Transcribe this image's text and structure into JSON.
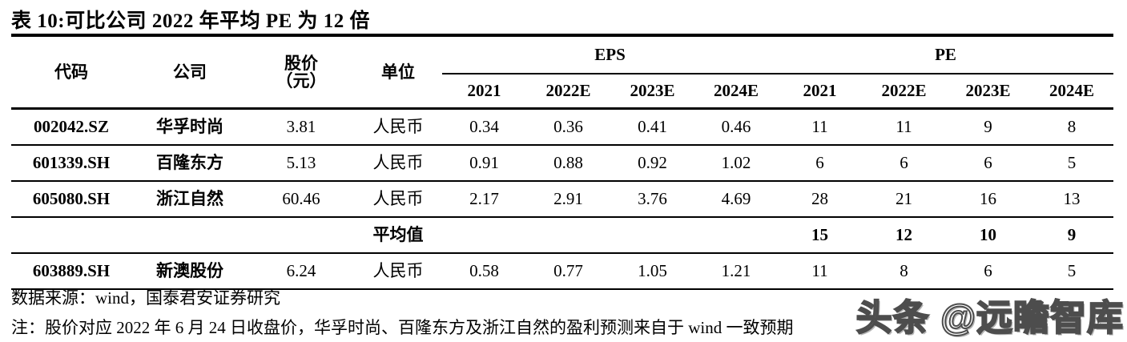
{
  "title": "表 10:可比公司 2022 年平均 PE 为 12 倍",
  "table": {
    "headers": {
      "code": "代码",
      "company": "公司",
      "price_line1": "股价",
      "price_line2": "（元）",
      "unit": "单位",
      "eps_group": "EPS",
      "pe_group": "PE",
      "years": [
        "2021",
        "2022E",
        "2023E",
        "2024E"
      ]
    },
    "rows": [
      {
        "type": "data",
        "code": "002042.SZ",
        "company": "华孚时尚",
        "price": "3.81",
        "unit": "人民币",
        "eps": [
          "0.34",
          "0.36",
          "0.41",
          "0.46"
        ],
        "pe": [
          "11",
          "11",
          "9",
          "8"
        ]
      },
      {
        "type": "data",
        "code": "601339.SH",
        "company": "百隆东方",
        "price": "5.13",
        "unit": "人民币",
        "eps": [
          "0.91",
          "0.88",
          "0.92",
          "1.02"
        ],
        "pe": [
          "6",
          "6",
          "6",
          "5"
        ]
      },
      {
        "type": "data",
        "code": "605080.SH",
        "company": "浙江自然",
        "price": "60.46",
        "unit": "人民币",
        "eps": [
          "2.17",
          "2.91",
          "3.76",
          "4.69"
        ],
        "pe": [
          "28",
          "21",
          "16",
          "13"
        ]
      },
      {
        "type": "average",
        "code": "",
        "company": "",
        "price": "",
        "unit": "平均值",
        "eps": [
          "",
          "",
          "",
          ""
        ],
        "pe": [
          "15",
          "12",
          "10",
          "9"
        ]
      },
      {
        "type": "data",
        "code": "603889.SH",
        "company": "新澳股份",
        "price": "6.24",
        "unit": "人民币",
        "eps": [
          "0.58",
          "0.77",
          "1.05",
          "1.21"
        ],
        "pe": [
          "11",
          "8",
          "6",
          "5"
        ]
      }
    ]
  },
  "footer": {
    "source": "数据来源：wind，国泰君安证券研究",
    "note": "注：股价对应 2022 年 6 月 24 日收盘价，华孚时尚、百隆东方及浙江自然的盈利预测来自于 wind 一致预期"
  },
  "watermark": "头条 @远瞻智库"
}
